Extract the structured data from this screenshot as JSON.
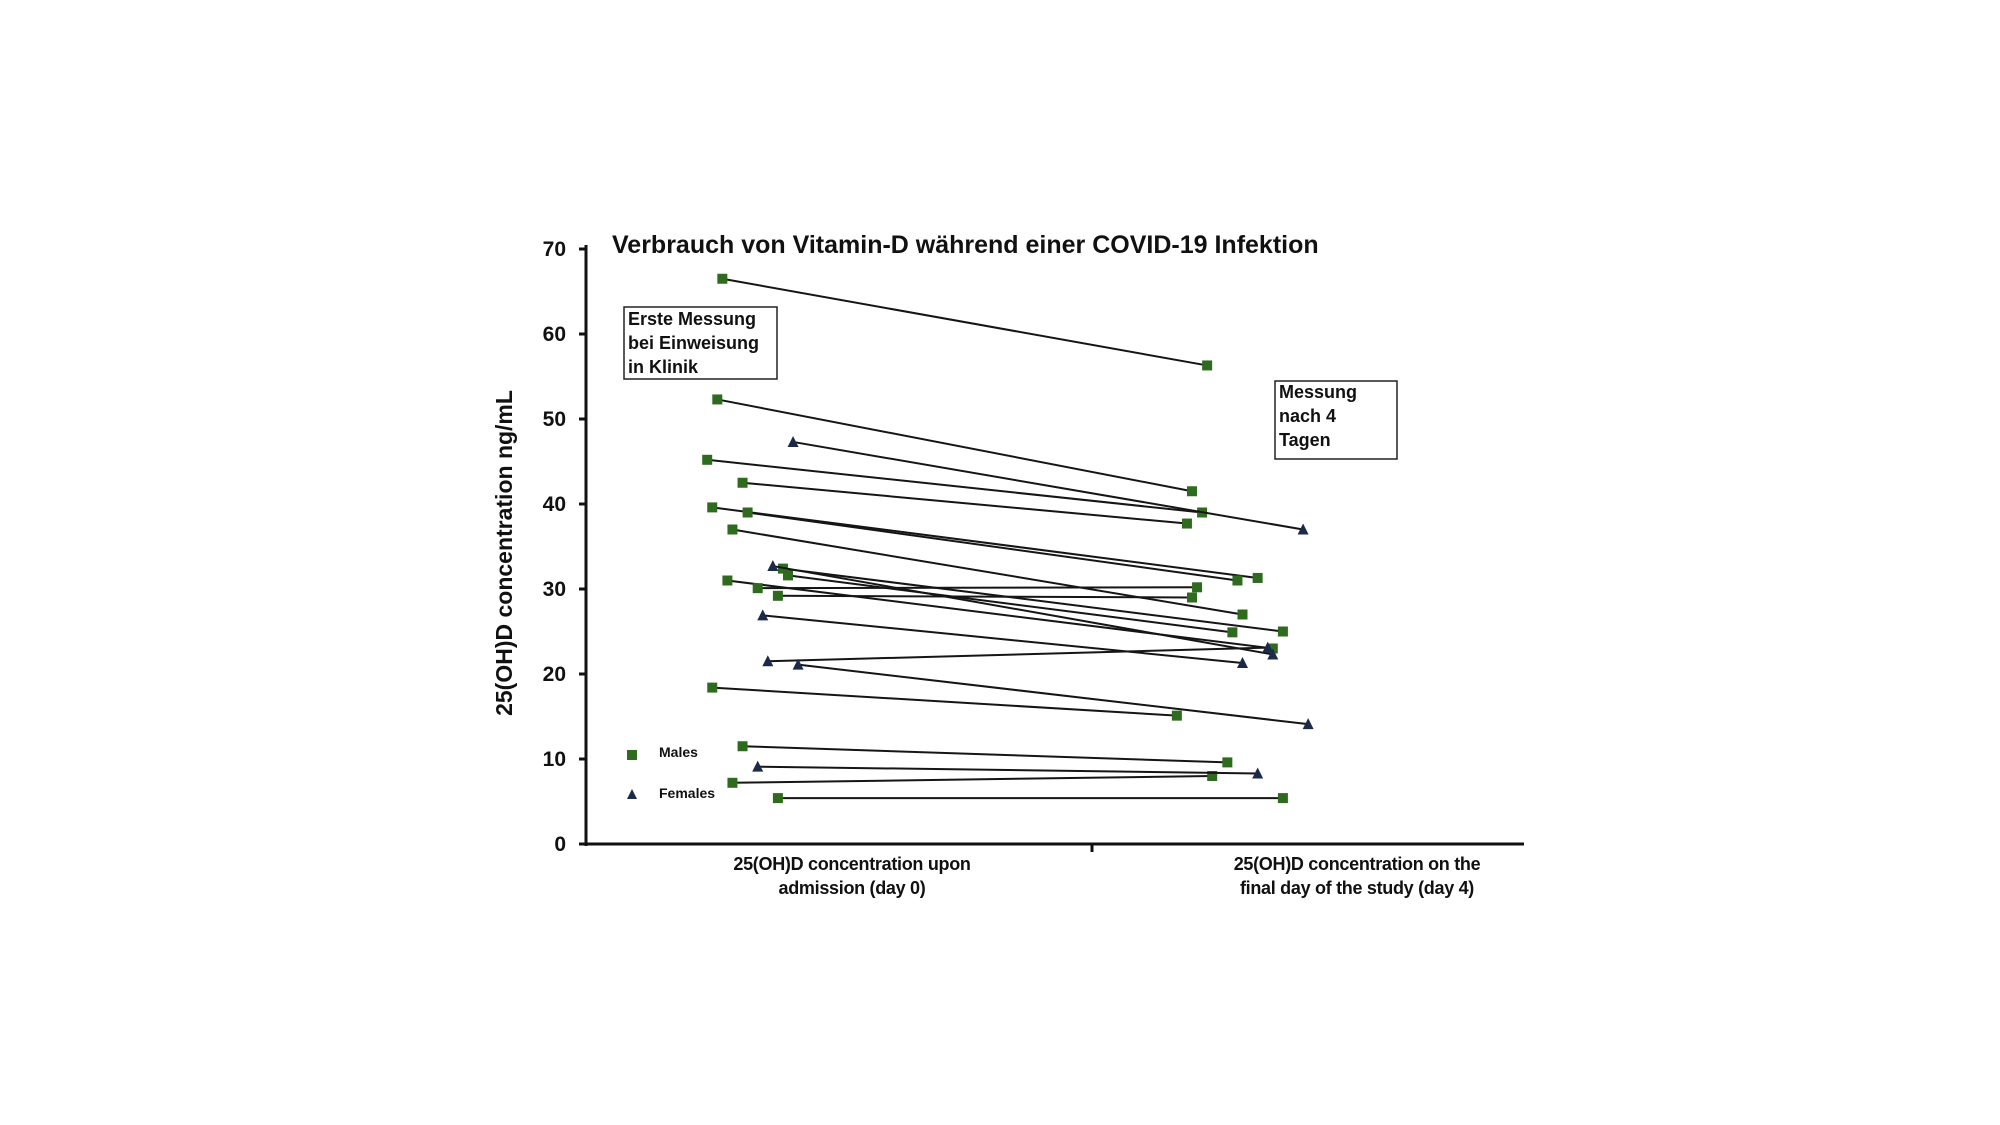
{
  "chart_data": {
    "type": "line",
    "title": "Verbrauch von Vitamin-D während einer COVID-19 Infektion",
    "ylabel": "25(OH)D concentration ng/mL",
    "xlabel": "",
    "ylim": [
      0,
      70
    ],
    "yticks": [
      "0",
      "10",
      "20",
      "30",
      "40",
      "50",
      "60",
      "70"
    ],
    "categories": [
      [
        "25(OH)D concentration upon",
        "admission (day 0)"
      ],
      [
        "25(OH)D concentration on the",
        "final day of the study (day 4)"
      ]
    ],
    "annotations": [
      [
        "Erste Messung",
        "bei Einweisung",
        "in Klinik"
      ],
      [
        "Messung",
        "nach 4",
        "Tagen"
      ]
    ],
    "legend": {
      "position": "bottom-left",
      "entries": [
        {
          "label": "Males",
          "marker": "square",
          "color": "#2e6b1f"
        },
        {
          "label": "Females",
          "marker": "triangle",
          "color": "#1c2a4a"
        }
      ]
    },
    "colors": {
      "male": "#2e6b1f",
      "female": "#1c2a4a",
      "line": "#151515"
    },
    "jitter": {
      "day0_range": [
        0.6,
        0.95
      ],
      "day4_range": [
        1.65,
        2.03
      ]
    },
    "series": [
      {
        "group": "male",
        "x": [
          0.77,
          1.73
        ],
        "y": [
          66.5,
          56.3
        ]
      },
      {
        "group": "male",
        "x": [
          0.76,
          1.7
        ],
        "y": [
          52.3,
          41.5
        ]
      },
      {
        "group": "male",
        "x": [
          0.74,
          1.72
        ],
        "y": [
          45.2,
          39.0
        ]
      },
      {
        "group": "male",
        "x": [
          0.81,
          1.69
        ],
        "y": [
          42.5,
          37.7
        ]
      },
      {
        "group": "male",
        "x": [
          0.75,
          1.83
        ],
        "y": [
          39.6,
          31.3
        ]
      },
      {
        "group": "male",
        "x": [
          0.82,
          1.79
        ],
        "y": [
          39.0,
          31.0
        ]
      },
      {
        "group": "male",
        "x": [
          0.79,
          1.8
        ],
        "y": [
          37.0,
          27.0
        ]
      },
      {
        "group": "male",
        "x": [
          0.89,
          1.88
        ],
        "y": [
          32.4,
          25.0
        ]
      },
      {
        "group": "male",
        "x": [
          0.9,
          1.78
        ],
        "y": [
          31.6,
          24.9
        ]
      },
      {
        "group": "male",
        "x": [
          0.78,
          1.86
        ],
        "y": [
          31.0,
          23.0
        ]
      },
      {
        "group": "male",
        "x": [
          0.84,
          1.71
        ],
        "y": [
          30.1,
          30.2
        ]
      },
      {
        "group": "male",
        "x": [
          0.88,
          1.7
        ],
        "y": [
          29.2,
          29.0
        ]
      },
      {
        "group": "male",
        "x": [
          0.75,
          1.67
        ],
        "y": [
          18.4,
          15.1
        ]
      },
      {
        "group": "male",
        "x": [
          0.81,
          1.77
        ],
        "y": [
          11.5,
          9.6
        ]
      },
      {
        "group": "male",
        "x": [
          0.79,
          1.74
        ],
        "y": [
          7.2,
          8.0
        ]
      },
      {
        "group": "male",
        "x": [
          0.88,
          1.88
        ],
        "y": [
          5.4,
          5.4
        ]
      },
      {
        "group": "female",
        "x": [
          0.91,
          1.92
        ],
        "y": [
          47.3,
          37.0
        ]
      },
      {
        "group": "female",
        "x": [
          0.87,
          1.86
        ],
        "y": [
          32.7,
          22.3
        ]
      },
      {
        "group": "female",
        "x": [
          0.85,
          1.8
        ],
        "y": [
          26.9,
          21.3
        ]
      },
      {
        "group": "female",
        "x": [
          0.86,
          1.85
        ],
        "y": [
          21.5,
          23.1
        ]
      },
      {
        "group": "female",
        "x": [
          0.92,
          1.93
        ],
        "y": [
          21.1,
          14.1
        ]
      },
      {
        "group": "female",
        "x": [
          0.84,
          1.83
        ],
        "y": [
          9.1,
          8.3
        ]
      }
    ]
  }
}
